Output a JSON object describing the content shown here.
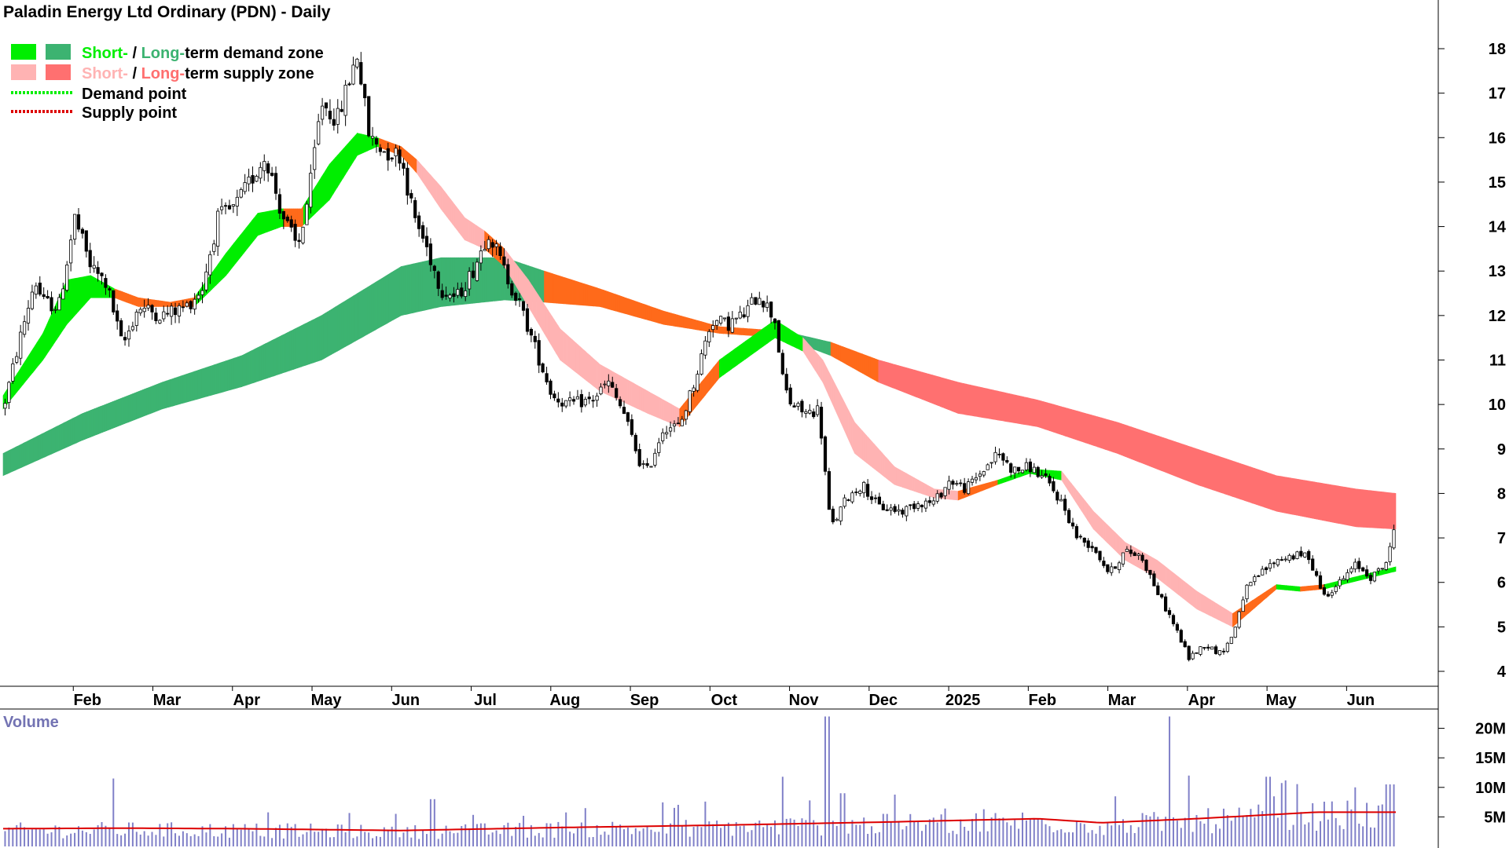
{
  "chart_data": {
    "type": "candlestick",
    "title": "Paladin Energy Ltd Ordinary (PDN) - Daily",
    "legend": {
      "position": "top-left",
      "items": [
        {
          "parts": [
            {
              "text": "Short-",
              "color": "#00ee00"
            },
            {
              "text": " / ",
              "color": "#000000"
            },
            {
              "text": "Long-",
              "color": "#3cb371"
            },
            {
              "text": "term demand zone",
              "color": "#000000"
            }
          ],
          "swatches": [
            "#00ee00",
            "#3cb371"
          ]
        },
        {
          "parts": [
            {
              "text": "Short-",
              "color": "#ffb3b3"
            },
            {
              "text": " / ",
              "color": "#000000"
            },
            {
              "text": "Long-",
              "color": "#ff7070"
            },
            {
              "text": "term supply zone",
              "color": "#000000"
            }
          ],
          "swatches": [
            "#ffb3b3",
            "#ff7070"
          ]
        },
        {
          "parts": [
            {
              "text": "Demand point",
              "color": "#000000"
            }
          ],
          "dotted": "#00ee00"
        },
        {
          "parts": [
            {
              "text": "Supply point",
              "color": "#000000"
            }
          ],
          "dotted": "#dd0000"
        }
      ]
    },
    "x_axis": {
      "labels": [
        "Feb",
        "Mar",
        "Apr",
        "May",
        "Jun",
        "Jul",
        "Aug",
        "Sep",
        "Oct",
        "Nov",
        "Dec",
        "2025",
        "Feb",
        "Mar",
        "Apr",
        "May",
        "Jun"
      ],
      "positions": [
        0.5,
        1.5,
        2.5,
        3.5,
        4.5,
        5.5,
        6.5,
        7.5,
        8.5,
        9.5,
        10.5,
        11.5,
        12.5,
        13.5,
        14.5,
        15.5,
        16.5
      ]
    },
    "x_range": [
      -0.5,
      17.0
    ],
    "price_axis": {
      "ticks": [
        4,
        5,
        6,
        7,
        8,
        9,
        10,
        11,
        12,
        13,
        14,
        15,
        16,
        17,
        18
      ],
      "range": [
        3.7,
        18.6
      ]
    },
    "volume_axis": {
      "ticks": [
        5,
        10,
        15,
        20
      ],
      "tick_labels": [
        "5M",
        "10M",
        "15M",
        "20M"
      ],
      "range": [
        0,
        23
      ],
      "title": "Volume"
    },
    "price_series": [
      {
        "t": -0.5,
        "p": 9.9
      },
      {
        "t": -0.3,
        "p": 11.4
      },
      {
        "t": -0.1,
        "p": 12.8
      },
      {
        "t": 0.0,
        "p": 12.3
      },
      {
        "t": 0.2,
        "p": 12.2
      },
      {
        "t": 0.4,
        "p": 14.2
      },
      {
        "t": 0.6,
        "p": 13.1
      },
      {
        "t": 0.8,
        "p": 12.7
      },
      {
        "t": 1.0,
        "p": 11.3
      },
      {
        "t": 1.2,
        "p": 12.2
      },
      {
        "t": 1.5,
        "p": 12.0
      },
      {
        "t": 1.8,
        "p": 12.2
      },
      {
        "t": 2.0,
        "p": 12.6
      },
      {
        "t": 2.2,
        "p": 14.2
      },
      {
        "t": 2.4,
        "p": 14.4
      },
      {
        "t": 2.6,
        "p": 15.0
      },
      {
        "t": 2.8,
        "p": 15.6
      },
      {
        "t": 3.0,
        "p": 14.3
      },
      {
        "t": 3.2,
        "p": 13.5
      },
      {
        "t": 3.35,
        "p": 14.8
      },
      {
        "t": 3.5,
        "p": 16.8
      },
      {
        "t": 3.7,
        "p": 16.4
      },
      {
        "t": 3.95,
        "p": 17.9
      },
      {
        "t": 4.1,
        "p": 16.0
      },
      {
        "t": 4.3,
        "p": 15.7
      },
      {
        "t": 4.5,
        "p": 15.6
      },
      {
        "t": 4.65,
        "p": 14.3
      },
      {
        "t": 4.85,
        "p": 13.4
      },
      {
        "t": 5.0,
        "p": 12.6
      },
      {
        "t": 5.2,
        "p": 12.4
      },
      {
        "t": 5.4,
        "p": 13.0
      },
      {
        "t": 5.6,
        "p": 13.9
      },
      {
        "t": 5.8,
        "p": 13.0
      },
      {
        "t": 6.0,
        "p": 12.2
      },
      {
        "t": 6.2,
        "p": 11.2
      },
      {
        "t": 6.4,
        "p": 10.2
      },
      {
        "t": 6.6,
        "p": 10.0
      },
      {
        "t": 6.9,
        "p": 10.1
      },
      {
        "t": 7.1,
        "p": 10.5
      },
      {
        "t": 7.3,
        "p": 9.8
      },
      {
        "t": 7.5,
        "p": 8.7
      },
      {
        "t": 7.6,
        "p": 8.5
      },
      {
        "t": 7.8,
        "p": 9.5
      },
      {
        "t": 8.0,
        "p": 9.5
      },
      {
        "t": 8.2,
        "p": 10.6
      },
      {
        "t": 8.4,
        "p": 11.9
      },
      {
        "t": 8.6,
        "p": 11.8
      },
      {
        "t": 8.8,
        "p": 12.0
      },
      {
        "t": 9.0,
        "p": 12.5
      },
      {
        "t": 9.2,
        "p": 11.9
      },
      {
        "t": 9.3,
        "p": 10.5
      },
      {
        "t": 9.4,
        "p": 10.0
      },
      {
        "t": 9.6,
        "p": 9.8
      },
      {
        "t": 9.75,
        "p": 9.9
      },
      {
        "t": 9.9,
        "p": 7.2
      },
      {
        "t": 10.1,
        "p": 7.9
      },
      {
        "t": 10.3,
        "p": 8.2
      },
      {
        "t": 10.5,
        "p": 7.7
      },
      {
        "t": 10.8,
        "p": 7.6
      },
      {
        "t": 11.0,
        "p": 7.8
      },
      {
        "t": 11.2,
        "p": 7.8
      },
      {
        "t": 11.4,
        "p": 8.3
      },
      {
        "t": 11.6,
        "p": 8.1
      },
      {
        "t": 11.8,
        "p": 8.5
      },
      {
        "t": 12.0,
        "p": 8.9
      },
      {
        "t": 12.2,
        "p": 8.5
      },
      {
        "t": 12.4,
        "p": 8.6
      },
      {
        "t": 12.6,
        "p": 8.3
      },
      {
        "t": 12.8,
        "p": 7.8
      },
      {
        "t": 13.0,
        "p": 7.0
      },
      {
        "t": 13.2,
        "p": 6.8
      },
      {
        "t": 13.4,
        "p": 6.2
      },
      {
        "t": 13.6,
        "p": 6.7
      },
      {
        "t": 13.8,
        "p": 6.6
      },
      {
        "t": 14.0,
        "p": 5.8
      },
      {
        "t": 14.2,
        "p": 5.1
      },
      {
        "t": 14.4,
        "p": 4.3
      },
      {
        "t": 14.6,
        "p": 4.6
      },
      {
        "t": 14.8,
        "p": 4.4
      },
      {
        "t": 14.95,
        "p": 4.8
      },
      {
        "t": 15.1,
        "p": 5.8
      },
      {
        "t": 15.3,
        "p": 6.2
      },
      {
        "t": 15.5,
        "p": 6.5
      },
      {
        "t": 15.7,
        "p": 6.6
      },
      {
        "t": 15.9,
        "p": 6.6
      },
      {
        "t": 16.1,
        "p": 5.7
      },
      {
        "t": 16.3,
        "p": 6.0
      },
      {
        "t": 16.5,
        "p": 6.4
      },
      {
        "t": 16.7,
        "p": 6.1
      },
      {
        "t": 16.9,
        "p": 6.5
      },
      {
        "t": 17.0,
        "p": 7.4
      }
    ],
    "zones": {
      "long_term": [
        {
          "t": -0.5,
          "top": 8.9,
          "bot": 8.4,
          "kind": "demand"
        },
        {
          "t": 0.5,
          "top": 9.8,
          "bot": 9.2,
          "kind": "demand"
        },
        {
          "t": 1.5,
          "top": 10.5,
          "bot": 9.9,
          "kind": "demand"
        },
        {
          "t": 2.5,
          "top": 11.1,
          "bot": 10.4,
          "kind": "demand"
        },
        {
          "t": 3.5,
          "top": 12.0,
          "bot": 11.0,
          "kind": "demand"
        },
        {
          "t": 4.5,
          "top": 13.1,
          "bot": 12.0,
          "kind": "demand"
        },
        {
          "t": 5.0,
          "top": 13.3,
          "bot": 12.2,
          "kind": "demand"
        },
        {
          "t": 5.8,
          "top": 13.3,
          "bot": 12.35,
          "kind": "demand"
        },
        {
          "t": 6.3,
          "top": 13.0,
          "bot": 12.3,
          "kind": "supply-active"
        },
        {
          "t": 7.0,
          "top": 12.6,
          "bot": 12.2,
          "kind": "supply-active"
        },
        {
          "t": 7.8,
          "top": 12.1,
          "bot": 11.8,
          "kind": "supply-active"
        },
        {
          "t": 8.5,
          "top": 11.75,
          "bot": 11.6,
          "kind": "supply-active"
        },
        {
          "t": 9.3,
          "top": 11.65,
          "bot": 11.5,
          "kind": "demand"
        },
        {
          "t": 9.9,
          "top": 11.4,
          "bot": 11.1,
          "kind": "supply-active"
        },
        {
          "t": 10.5,
          "top": 11.0,
          "bot": 10.5,
          "kind": "supply"
        },
        {
          "t": 11.5,
          "top": 10.5,
          "bot": 9.8,
          "kind": "supply"
        },
        {
          "t": 12.5,
          "top": 10.1,
          "bot": 9.5,
          "kind": "supply"
        },
        {
          "t": 13.5,
          "top": 9.6,
          "bot": 8.9,
          "kind": "supply"
        },
        {
          "t": 14.5,
          "top": 9.0,
          "bot": 8.2,
          "kind": "supply"
        },
        {
          "t": 15.5,
          "top": 8.4,
          "bot": 7.6,
          "kind": "supply"
        },
        {
          "t": 16.5,
          "top": 8.1,
          "bot": 7.25,
          "kind": "supply"
        },
        {
          "t": 17.0,
          "top": 8.0,
          "bot": 7.2,
          "kind": "supply"
        }
      ],
      "short_term": [
        {
          "t": -0.5,
          "top": 10.2,
          "bot": 9.9,
          "kind": "demand"
        },
        {
          "t": 0.0,
          "top": 11.6,
          "bot": 11.0,
          "kind": "demand"
        },
        {
          "t": 0.3,
          "top": 12.8,
          "bot": 11.8,
          "kind": "demand"
        },
        {
          "t": 0.6,
          "top": 12.9,
          "bot": 12.4,
          "kind": "demand"
        },
        {
          "t": 0.9,
          "top": 12.6,
          "bot": 12.4,
          "kind": "supply-active"
        },
        {
          "t": 1.2,
          "top": 12.4,
          "bot": 12.2,
          "kind": "supply-active"
        },
        {
          "t": 1.6,
          "top": 12.3,
          "bot": 12.2,
          "kind": "supply-active"
        },
        {
          "t": 1.9,
          "top": 12.4,
          "bot": 12.2,
          "kind": "demand"
        },
        {
          "t": 2.3,
          "top": 13.4,
          "bot": 12.9,
          "kind": "demand"
        },
        {
          "t": 2.7,
          "top": 14.3,
          "bot": 13.8,
          "kind": "demand"
        },
        {
          "t": 3.0,
          "top": 14.4,
          "bot": 14.0,
          "kind": "supply-active"
        },
        {
          "t": 3.25,
          "top": 14.4,
          "bot": 14.0,
          "kind": "demand"
        },
        {
          "t": 3.6,
          "top": 15.4,
          "bot": 14.6,
          "kind": "demand"
        },
        {
          "t": 3.95,
          "top": 16.1,
          "bot": 15.6,
          "kind": "demand"
        },
        {
          "t": 4.2,
          "top": 16.0,
          "bot": 15.8,
          "kind": "supply-active"
        },
        {
          "t": 4.5,
          "top": 15.8,
          "bot": 15.6,
          "kind": "supply-active"
        },
        {
          "t": 4.7,
          "top": 15.5,
          "bot": 15.2,
          "kind": "supply-st"
        },
        {
          "t": 5.0,
          "top": 14.9,
          "bot": 14.4,
          "kind": "supply-st"
        },
        {
          "t": 5.3,
          "top": 14.2,
          "bot": 13.7,
          "kind": "supply-st"
        },
        {
          "t": 5.55,
          "top": 13.9,
          "bot": 13.5,
          "kind": "supply-active"
        },
        {
          "t": 5.8,
          "top": 13.5,
          "bot": 13.1,
          "kind": "supply-st"
        },
        {
          "t": 6.1,
          "top": 12.8,
          "bot": 12.2,
          "kind": "supply-st"
        },
        {
          "t": 6.5,
          "top": 11.7,
          "bot": 11.0,
          "kind": "supply-st"
        },
        {
          "t": 7.0,
          "top": 10.9,
          "bot": 10.3,
          "kind": "supply-st"
        },
        {
          "t": 7.6,
          "top": 10.3,
          "bot": 9.8,
          "kind": "supply-st"
        },
        {
          "t": 8.0,
          "top": 9.9,
          "bot": 9.5,
          "kind": "supply-active"
        },
        {
          "t": 8.5,
          "top": 11.0,
          "bot": 10.6,
          "kind": "demand"
        },
        {
          "t": 9.2,
          "top": 11.9,
          "bot": 11.5,
          "kind": "demand"
        },
        {
          "t": 9.55,
          "top": 11.5,
          "bot": 11.2,
          "kind": "supply-st"
        },
        {
          "t": 9.8,
          "top": 11.0,
          "bot": 10.5,
          "kind": "supply-st"
        },
        {
          "t": 10.2,
          "top": 9.6,
          "bot": 8.9,
          "kind": "supply-st"
        },
        {
          "t": 10.7,
          "top": 8.6,
          "bot": 8.2,
          "kind": "supply-st"
        },
        {
          "t": 11.2,
          "top": 8.1,
          "bot": 7.9,
          "kind": "supply-st"
        },
        {
          "t": 11.5,
          "top": 8.05,
          "bot": 7.85,
          "kind": "supply-active"
        },
        {
          "t": 12.0,
          "top": 8.3,
          "bot": 8.2,
          "kind": "demand"
        },
        {
          "t": 12.4,
          "top": 8.55,
          "bot": 8.45,
          "kind": "demand"
        },
        {
          "t": 12.8,
          "top": 8.5,
          "bot": 8.3,
          "kind": "supply-st"
        },
        {
          "t": 13.2,
          "top": 7.6,
          "bot": 7.2,
          "kind": "supply-st"
        },
        {
          "t": 13.6,
          "top": 6.9,
          "bot": 6.5,
          "kind": "supply-st"
        },
        {
          "t": 14.0,
          "top": 6.5,
          "bot": 6.1,
          "kind": "supply-st"
        },
        {
          "t": 14.5,
          "top": 5.8,
          "bot": 5.4,
          "kind": "supply-st"
        },
        {
          "t": 14.95,
          "top": 5.3,
          "bot": 5.0,
          "kind": "supply-active"
        },
        {
          "t": 15.5,
          "top": 5.95,
          "bot": 5.85,
          "kind": "demand"
        },
        {
          "t": 15.8,
          "top": 5.9,
          "bot": 5.8,
          "kind": "supply-active"
        },
        {
          "t": 16.1,
          "top": 5.95,
          "bot": 5.85,
          "kind": "demand"
        },
        {
          "t": 17.0,
          "top": 6.35,
          "bot": 6.25,
          "kind": "demand"
        }
      ]
    },
    "volume_avg": [
      {
        "t": -0.5,
        "v": 3.0
      },
      {
        "t": 1.0,
        "v": 3.1
      },
      {
        "t": 2.5,
        "v": 3.0
      },
      {
        "t": 4.5,
        "v": 2.7
      },
      {
        "t": 6.5,
        "v": 3.2
      },
      {
        "t": 8.5,
        "v": 3.6
      },
      {
        "t": 10.5,
        "v": 4.1
      },
      {
        "t": 12.5,
        "v": 4.7
      },
      {
        "t": 13.3,
        "v": 4.0
      },
      {
        "t": 14.5,
        "v": 4.7
      },
      {
        "t": 16.0,
        "v": 5.8
      },
      {
        "t": 17.0,
        "v": 5.8
      }
    ],
    "volume_spikes": [
      {
        "t": 0.9,
        "v": 11.5
      },
      {
        "t": 4.9,
        "v": 8.0
      },
      {
        "t": 9.3,
        "v": 11.8
      },
      {
        "t": 9.85,
        "v": 22.0
      },
      {
        "t": 10.05,
        "v": 9.0
      },
      {
        "t": 14.15,
        "v": 22.0
      },
      {
        "t": 14.4,
        "v": 12.0
      },
      {
        "t": 15.4,
        "v": 11.8
      },
      {
        "t": 16.5,
        "v": 10.0
      },
      {
        "t": 16.9,
        "v": 10.5
      },
      {
        "t": 17.0,
        "v": 10.5
      }
    ],
    "colors": {
      "lt_demand": "#3cb371",
      "st_demand": "#00ee00",
      "lt_supply": "#ff7070",
      "st_supply": "#ffb3b3",
      "active_supply": "#ff6a1a",
      "candle": "#000000",
      "volume_bar": "#8080c8",
      "volume_avg": "#dd0000"
    }
  }
}
